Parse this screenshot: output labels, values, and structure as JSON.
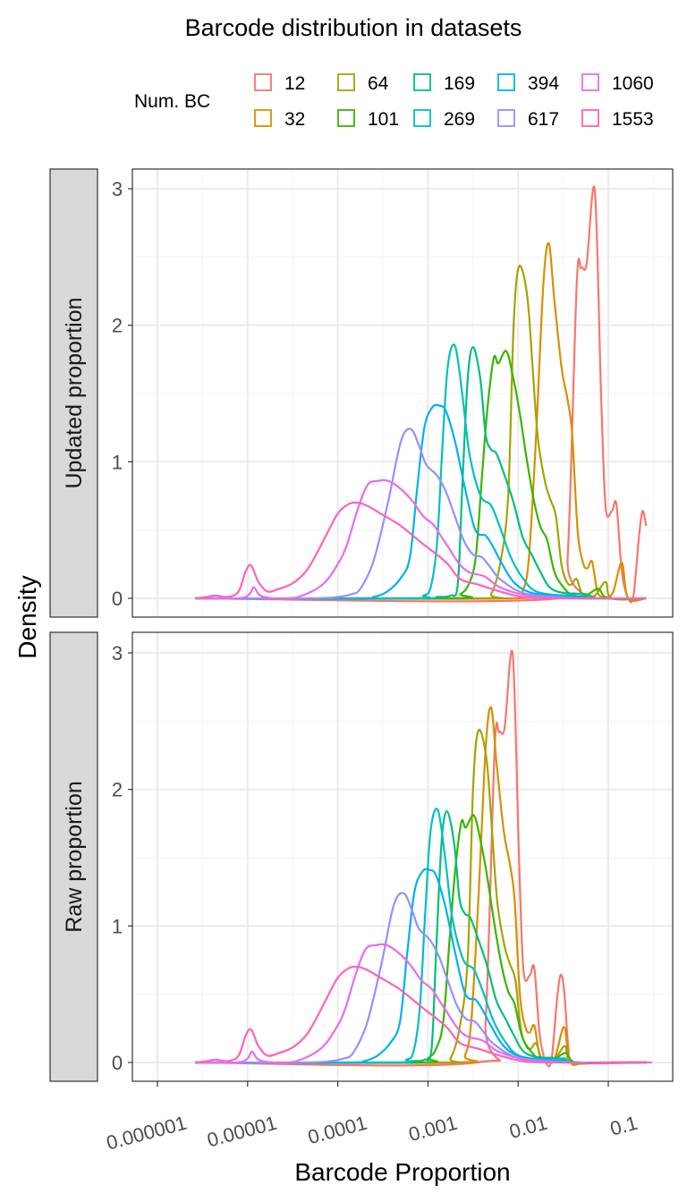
{
  "chart_data": {
    "type": "line",
    "title": "Barcode distribution in datasets",
    "xlabel": "Barcode Proportion",
    "ylabel": "Density",
    "x_scale": "log10",
    "x_range_log10": [
      -6.3,
      -0.3
    ],
    "x_ticks": [
      {
        "log10": -6,
        "label": "0.000001"
      },
      {
        "log10": -5,
        "label": "0.00001"
      },
      {
        "log10": -4,
        "label": "0.0001"
      },
      {
        "log10": -3,
        "label": "0.001"
      },
      {
        "log10": -2,
        "label": "0.01"
      },
      {
        "log10": -1,
        "label": "0.1"
      }
    ],
    "y_ticks": [
      0,
      1,
      2,
      3
    ],
    "y_range": [
      -0.1,
      3.15
    ],
    "grid": true,
    "legend": {
      "title": "Num. BC",
      "placement": "top"
    },
    "panels": [
      {
        "label": "Updated proportion"
      },
      {
        "label": "Raw proportion"
      }
    ],
    "series_note": "points are [log10(proportion), density] for the Updated proportion panel; Raw proportion panel = same curve shifted by raw_shift_log10 (plus raw_tail)",
    "series": [
      {
        "name": "12",
        "color": "#F8766D",
        "raw_shift_log10": -0.91,
        "raw_tail": [
          [
            -1.44,
            0.1
          ],
          [
            -1.38,
            0
          ]
        ],
        "points": [
          [
            -5.58,
            0
          ],
          [
            -1.55,
            0
          ],
          [
            -1.45,
            0.3
          ],
          [
            -1.35,
            2.3
          ],
          [
            -1.3,
            2.42
          ],
          [
            -1.24,
            2.45
          ],
          [
            -1.15,
            2.99
          ],
          [
            -1.08,
            1.5
          ],
          [
            -1.03,
            0.67
          ],
          [
            -0.96,
            0.64
          ],
          [
            -0.91,
            0.69
          ],
          [
            -0.85,
            0.2
          ],
          [
            -0.78,
            0
          ],
          [
            -0.72,
            0.02
          ],
          [
            -0.66,
            0.45
          ],
          [
            -0.62,
            0.64
          ],
          [
            -0.58,
            0.53
          ]
        ]
      },
      {
        "name": "32",
        "color": "#D89000",
        "raw_shift_log10": -0.64,
        "points": [
          [
            -5.58,
            0
          ],
          [
            -2.05,
            0
          ],
          [
            -1.95,
            0.05
          ],
          [
            -1.88,
            0.3
          ],
          [
            -1.8,
            1.2
          ],
          [
            -1.72,
            2.3
          ],
          [
            -1.66,
            2.6
          ],
          [
            -1.6,
            2.2
          ],
          [
            -1.52,
            1.7
          ],
          [
            -1.45,
            1.45
          ],
          [
            -1.4,
            1.2
          ],
          [
            -1.34,
            0.5
          ],
          [
            -1.28,
            0.26
          ],
          [
            -1.23,
            0.22
          ],
          [
            -1.18,
            0.27
          ],
          [
            -1.12,
            0.05
          ],
          [
            -1.05,
            0.01
          ],
          [
            -0.95,
            0.04
          ],
          [
            -0.85,
            0.26
          ],
          [
            -0.78,
            0
          ],
          [
            -0.58,
            0
          ]
        ]
      },
      {
        "name": "64",
        "color": "#A3A500",
        "raw_shift_log10": -0.45,
        "points": [
          [
            -5.58,
            0
          ],
          [
            -2.4,
            0
          ],
          [
            -2.3,
            0.03
          ],
          [
            -2.2,
            0.25
          ],
          [
            -2.11,
            0.75
          ],
          [
            -2.05,
            2.0
          ],
          [
            -1.99,
            2.43
          ],
          [
            -1.9,
            2.22
          ],
          [
            -1.84,
            1.7
          ],
          [
            -1.78,
            1.17
          ],
          [
            -1.7,
            0.85
          ],
          [
            -1.64,
            0.72
          ],
          [
            -1.58,
            0.6
          ],
          [
            -1.52,
            0.25
          ],
          [
            -1.46,
            0.12
          ],
          [
            -1.41,
            0.1
          ],
          [
            -1.35,
            0.14
          ],
          [
            -1.28,
            0.02
          ],
          [
            -1.15,
            0.02
          ],
          [
            -1.03,
            0.12
          ],
          [
            -0.96,
            0
          ],
          [
            -0.58,
            0
          ]
        ]
      },
      {
        "name": "101",
        "color": "#39B600",
        "raw_shift_log10": -0.36,
        "points": [
          [
            -5.58,
            0
          ],
          [
            -2.75,
            0
          ],
          [
            -2.64,
            0.03
          ],
          [
            -2.55,
            0.1
          ],
          [
            -2.47,
            0.3
          ],
          [
            -2.4,
            0.9
          ],
          [
            -2.34,
            1.39
          ],
          [
            -2.27,
            1.76
          ],
          [
            -2.22,
            1.72
          ],
          [
            -2.13,
            1.81
          ],
          [
            -2.05,
            1.6
          ],
          [
            -1.98,
            1.35
          ],
          [
            -1.9,
            1.0
          ],
          [
            -1.82,
            0.7
          ],
          [
            -1.75,
            0.52
          ],
          [
            -1.68,
            0.43
          ],
          [
            -1.6,
            0.2
          ],
          [
            -1.52,
            0.1
          ],
          [
            -1.4,
            0.02
          ],
          [
            -1.25,
            0.02
          ],
          [
            -1.11,
            0.07
          ],
          [
            -1.0,
            0
          ],
          [
            -0.58,
            0
          ]
        ]
      },
      {
        "name": "169",
        "color": "#00BF7D",
        "raw_shift_log10": -0.29,
        "points": [
          [
            -5.58,
            0
          ],
          [
            -3.1,
            0
          ],
          [
            -2.9,
            0.01
          ],
          [
            -2.75,
            0.02
          ],
          [
            -2.67,
            0.1
          ],
          [
            -2.62,
            0.8
          ],
          [
            -2.56,
            1.6
          ],
          [
            -2.5,
            1.84
          ],
          [
            -2.42,
            1.61
          ],
          [
            -2.36,
            1.2
          ],
          [
            -2.3,
            1.09
          ],
          [
            -2.24,
            1.06
          ],
          [
            -2.15,
            0.9
          ],
          [
            -2.05,
            0.7
          ],
          [
            -1.95,
            0.45
          ],
          [
            -1.85,
            0.32
          ],
          [
            -1.75,
            0.19
          ],
          [
            -1.65,
            0.08
          ],
          [
            -1.5,
            0.04
          ],
          [
            -1.25,
            0.03
          ],
          [
            -1.1,
            0
          ],
          [
            -0.58,
            0
          ]
        ]
      },
      {
        "name": "269",
        "color": "#00BFC4",
        "raw_shift_log10": -0.19,
        "points": [
          [
            -5.58,
            0
          ],
          [
            -3.2,
            0
          ],
          [
            -3.05,
            0.02
          ],
          [
            -2.97,
            0.08
          ],
          [
            -2.9,
            0.4
          ],
          [
            -2.84,
            1.1
          ],
          [
            -2.78,
            1.7
          ],
          [
            -2.7,
            1.85
          ],
          [
            -2.62,
            1.5
          ],
          [
            -2.55,
            1.1
          ],
          [
            -2.48,
            0.88
          ],
          [
            -2.4,
            0.73
          ],
          [
            -2.3,
            0.68
          ],
          [
            -2.2,
            0.52
          ],
          [
            -2.08,
            0.3
          ],
          [
            -1.95,
            0.15
          ],
          [
            -1.8,
            0.05
          ],
          [
            -1.5,
            0.02
          ],
          [
            -1.3,
            0.03
          ],
          [
            -1.2,
            0
          ],
          [
            -0.58,
            0
          ]
        ]
      },
      {
        "name": "394",
        "color": "#00B0F6",
        "raw_shift_log10": -0.11,
        "points": [
          [
            -5.58,
            0
          ],
          [
            -3.8,
            0
          ],
          [
            -3.6,
            0.01
          ],
          [
            -3.45,
            0.05
          ],
          [
            -3.3,
            0.15
          ],
          [
            -3.2,
            0.3
          ],
          [
            -3.12,
            0.8
          ],
          [
            -3.04,
            1.25
          ],
          [
            -2.95,
            1.4
          ],
          [
            -2.87,
            1.41
          ],
          [
            -2.8,
            1.37
          ],
          [
            -2.7,
            1.15
          ],
          [
            -2.6,
            0.84
          ],
          [
            -2.5,
            0.55
          ],
          [
            -2.44,
            0.47
          ],
          [
            -2.36,
            0.46
          ],
          [
            -2.28,
            0.38
          ],
          [
            -2.2,
            0.28
          ],
          [
            -2.05,
            0.12
          ],
          [
            -1.85,
            0.04
          ],
          [
            -1.5,
            0.02
          ],
          [
            -1.2,
            0
          ],
          [
            -0.58,
            0
          ]
        ]
      },
      {
        "name": "617",
        "color": "#9590FF",
        "raw_shift_log10": -0.08,
        "points": [
          [
            -5.58,
            0
          ],
          [
            -4.3,
            0
          ],
          [
            -4.0,
            0.01
          ],
          [
            -3.85,
            0.03
          ],
          [
            -3.75,
            0.07
          ],
          [
            -3.6,
            0.28
          ],
          [
            -3.44,
            0.71
          ],
          [
            -3.3,
            1.15
          ],
          [
            -3.19,
            1.24
          ],
          [
            -3.1,
            1.12
          ],
          [
            -3.02,
            0.98
          ],
          [
            -2.9,
            0.9
          ],
          [
            -2.8,
            0.78
          ],
          [
            -2.7,
            0.6
          ],
          [
            -2.6,
            0.42
          ],
          [
            -2.5,
            0.32
          ],
          [
            -2.4,
            0.3
          ],
          [
            -2.3,
            0.22
          ],
          [
            -2.2,
            0.14
          ],
          [
            -1.95,
            0.04
          ],
          [
            -1.6,
            0.01
          ],
          [
            -1.3,
            0
          ],
          [
            -0.58,
            0
          ]
        ]
      },
      {
        "name": "1060",
        "color": "#E76BF3",
        "raw_shift_log10": -0.02,
        "points": [
          [
            -5.58,
            0
          ],
          [
            -5.1,
            0
          ],
          [
            -4.98,
            0.03
          ],
          [
            -4.93,
            0.08
          ],
          [
            -4.86,
            0.02
          ],
          [
            -4.7,
            0
          ],
          [
            -4.44,
            0.01
          ],
          [
            -4.17,
            0.1
          ],
          [
            -4.0,
            0.25
          ],
          [
            -3.9,
            0.39
          ],
          [
            -3.78,
            0.65
          ],
          [
            -3.67,
            0.83
          ],
          [
            -3.55,
            0.86
          ],
          [
            -3.44,
            0.86
          ],
          [
            -3.3,
            0.8
          ],
          [
            -3.17,
            0.71
          ],
          [
            -3.05,
            0.6
          ],
          [
            -2.94,
            0.54
          ],
          [
            -2.85,
            0.45
          ],
          [
            -2.77,
            0.37
          ],
          [
            -2.65,
            0.25
          ],
          [
            -2.54,
            0.19
          ],
          [
            -2.37,
            0.16
          ],
          [
            -2.2,
            0.08
          ],
          [
            -1.9,
            0.02
          ],
          [
            -1.5,
            0
          ],
          [
            -0.58,
            0
          ]
        ]
      },
      {
        "name": "1553",
        "color": "#FF62BC",
        "raw_shift_log10": 0,
        "points": [
          [
            -5.58,
            0
          ],
          [
            -5.45,
            0.01
          ],
          [
            -5.36,
            0.02
          ],
          [
            -5.22,
            0.01
          ],
          [
            -5.1,
            0.05
          ],
          [
            -5.02,
            0.2
          ],
          [
            -4.96,
            0.24
          ],
          [
            -4.88,
            0.12
          ],
          [
            -4.78,
            0.05
          ],
          [
            -4.65,
            0.07
          ],
          [
            -4.5,
            0.11
          ],
          [
            -4.35,
            0.2
          ],
          [
            -4.24,
            0.32
          ],
          [
            -4.1,
            0.5
          ],
          [
            -4.0,
            0.62
          ],
          [
            -3.88,
            0.69
          ],
          [
            -3.77,
            0.7
          ],
          [
            -3.65,
            0.67
          ],
          [
            -3.55,
            0.63
          ],
          [
            -3.42,
            0.58
          ],
          [
            -3.3,
            0.53
          ],
          [
            -3.15,
            0.45
          ],
          [
            -3.04,
            0.39
          ],
          [
            -2.9,
            0.32
          ],
          [
            -2.78,
            0.25
          ],
          [
            -2.64,
            0.14
          ],
          [
            -2.44,
            0.1
          ],
          [
            -2.2,
            0.05
          ],
          [
            -1.95,
            0.01
          ],
          [
            -1.6,
            0
          ],
          [
            -0.58,
            0
          ]
        ]
      }
    ]
  }
}
